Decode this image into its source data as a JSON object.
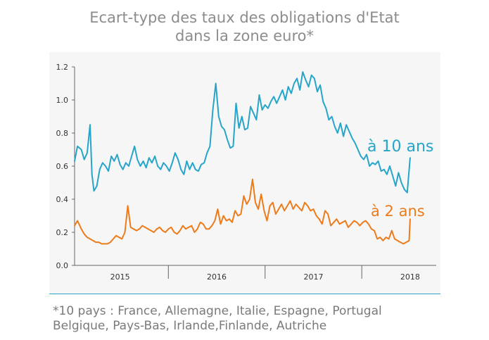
{
  "title": [
    "Ecart-type des taux des obligations d'Etat",
    "dans la zone euro*"
  ],
  "footnote": [
    "*10 pays : France, Allemagne, Italie, Espagne, Portugal",
    "Belgique, Pays-Bas, Irlande,Finlande, Autriche"
  ],
  "colors": {
    "title": "#8c8c8c",
    "axis": "#666666",
    "background_panel": "#f6f6f7",
    "ten_year": "#26a5c9",
    "two_year": "#ee7b1a",
    "footnote": "#7a7a7a"
  },
  "chart_data": {
    "type": "line",
    "title": "Ecart-type des taux des obligations d'Etat dans la zone euro*",
    "xlabel": "",
    "ylabel": "",
    "xlim": [
      2014.53,
      2018.27
    ],
    "ylim": [
      0,
      1.2
    ],
    "grid": false,
    "legend_placement": "inline-right",
    "x_ticks": [
      "2015",
      "2016",
      "2017",
      "2018"
    ],
    "x_tick_positions": [
      2015.0,
      2016.0,
      2017.0,
      2018.0
    ],
    "x_major_separators": [
      2015.5,
      2016.5,
      2017.5
    ],
    "y_ticks": [
      "0.0",
      "0.2",
      "0.4",
      "0.6",
      "0.8",
      "1.0",
      "1.2"
    ],
    "series": [
      {
        "name": "à 10 ans",
        "color": "#26a5c9",
        "x": [
          2014.53,
          2014.56,
          2014.6,
          2014.63,
          2014.66,
          2014.69,
          2014.71,
          2014.73,
          2014.76,
          2014.79,
          2014.82,
          2014.85,
          2014.88,
          2014.91,
          2014.94,
          2014.97,
          2015.0,
          2015.03,
          2015.06,
          2015.09,
          2015.12,
          2015.15,
          2015.18,
          2015.21,
          2015.24,
          2015.27,
          2015.3,
          2015.33,
          2015.36,
          2015.39,
          2015.42,
          2015.45,
          2015.48,
          2015.51,
          2015.54,
          2015.57,
          2015.6,
          2015.63,
          2015.66,
          2015.69,
          2015.72,
          2015.75,
          2015.78,
          2015.81,
          2015.84,
          2015.87,
          2015.9,
          2015.93,
          2015.96,
          2015.99,
          2016.02,
          2016.05,
          2016.08,
          2016.11,
          2016.14,
          2016.17,
          2016.2,
          2016.23,
          2016.26,
          2016.29,
          2016.32,
          2016.35,
          2016.38,
          2016.41,
          2016.44,
          2016.47,
          2016.5,
          2016.53,
          2016.56,
          2016.59,
          2016.62,
          2016.65,
          2016.68,
          2016.71,
          2016.74,
          2016.77,
          2016.8,
          2016.83,
          2016.86,
          2016.89,
          2016.92,
          2016.95,
          2016.98,
          2017.01,
          2017.04,
          2017.07,
          2017.1,
          2017.13,
          2017.16,
          2017.19,
          2017.22,
          2017.25,
          2017.28,
          2017.31,
          2017.34,
          2017.37,
          2017.4,
          2017.43,
          2017.46,
          2017.49,
          2017.52,
          2017.55,
          2017.58,
          2017.61,
          2017.64,
          2017.67,
          2017.7,
          2017.73,
          2017.76,
          2017.79,
          2017.82,
          2017.85,
          2017.88,
          2017.91,
          2017.94,
          2017.97,
          2018.0
        ],
        "values": [
          0.63,
          0.72,
          0.7,
          0.64,
          0.68,
          0.85,
          0.55,
          0.45,
          0.48,
          0.58,
          0.62,
          0.6,
          0.57,
          0.66,
          0.63,
          0.67,
          0.61,
          0.58,
          0.62,
          0.6,
          0.66,
          0.72,
          0.64,
          0.6,
          0.63,
          0.59,
          0.65,
          0.62,
          0.66,
          0.6,
          0.58,
          0.62,
          0.6,
          0.57,
          0.62,
          0.68,
          0.64,
          0.58,
          0.55,
          0.63,
          0.58,
          0.62,
          0.58,
          0.57,
          0.61,
          0.62,
          0.68,
          0.72,
          0.94,
          1.1,
          0.9,
          0.84,
          0.82,
          0.76,
          0.71,
          0.72,
          0.98,
          0.83,
          0.9,
          0.82,
          0.83,
          0.96,
          0.92,
          0.88,
          1.03,
          0.94,
          0.97,
          0.95,
          0.99,
          1.02,
          0.98,
          1.02,
          1.06,
          1.0,
          1.08,
          1.04,
          1.1,
          1.13,
          1.06,
          1.17,
          1.12,
          1.08,
          1.15,
          1.13,
          1.05,
          1.09,
          0.99,
          0.95,
          0.88,
          0.9,
          0.84,
          0.8,
          0.86,
          0.78,
          0.85,
          0.81,
          0.77,
          0.74,
          0.7,
          0.66,
          0.64,
          0.67,
          0.6,
          0.62,
          0.61,
          0.63,
          0.57,
          0.58,
          0.55,
          0.6,
          0.54,
          0.48,
          0.56,
          0.5,
          0.46,
          0.44,
          0.65
        ]
      },
      {
        "name": "à 2 ans",
        "color": "#ee7b1a",
        "x": [
          2014.53,
          2014.56,
          2014.6,
          2014.63,
          2014.66,
          2014.69,
          2014.72,
          2014.75,
          2014.78,
          2014.81,
          2014.84,
          2014.87,
          2014.9,
          2014.93,
          2014.96,
          2014.99,
          2015.02,
          2015.05,
          2015.08,
          2015.11,
          2015.14,
          2015.17,
          2015.2,
          2015.23,
          2015.26,
          2015.29,
          2015.32,
          2015.35,
          2015.38,
          2015.41,
          2015.44,
          2015.47,
          2015.5,
          2015.53,
          2015.56,
          2015.59,
          2015.62,
          2015.65,
          2015.68,
          2015.71,
          2015.74,
          2015.77,
          2015.8,
          2015.83,
          2015.86,
          2015.89,
          2015.92,
          2015.95,
          2015.98,
          2016.01,
          2016.04,
          2016.07,
          2016.1,
          2016.13,
          2016.16,
          2016.19,
          2016.22,
          2016.25,
          2016.28,
          2016.31,
          2016.34,
          2016.37,
          2016.4,
          2016.43,
          2016.46,
          2016.49,
          2016.52,
          2016.55,
          2016.58,
          2016.61,
          2016.64,
          2016.67,
          2016.7,
          2016.73,
          2016.76,
          2016.79,
          2016.82,
          2016.85,
          2016.88,
          2016.91,
          2016.94,
          2016.97,
          2017.0,
          2017.03,
          2017.06,
          2017.09,
          2017.12,
          2017.15,
          2017.18,
          2017.21,
          2017.24,
          2017.27,
          2017.3,
          2017.33,
          2017.36,
          2017.39,
          2017.42,
          2017.45,
          2017.48,
          2017.51,
          2017.54,
          2017.57,
          2017.6,
          2017.63,
          2017.66,
          2017.69,
          2017.72,
          2017.75,
          2017.78,
          2017.81,
          2017.84,
          2017.87,
          2017.9,
          2017.93,
          2017.96,
          2017.99,
          2018.0
        ],
        "values": [
          0.24,
          0.27,
          0.22,
          0.19,
          0.17,
          0.16,
          0.15,
          0.14,
          0.14,
          0.13,
          0.13,
          0.13,
          0.14,
          0.16,
          0.18,
          0.17,
          0.16,
          0.2,
          0.36,
          0.23,
          0.22,
          0.21,
          0.22,
          0.24,
          0.23,
          0.22,
          0.21,
          0.2,
          0.22,
          0.23,
          0.21,
          0.2,
          0.22,
          0.23,
          0.2,
          0.19,
          0.21,
          0.24,
          0.22,
          0.23,
          0.24,
          0.2,
          0.22,
          0.26,
          0.25,
          0.22,
          0.22,
          0.24,
          0.27,
          0.34,
          0.25,
          0.3,
          0.27,
          0.28,
          0.26,
          0.33,
          0.3,
          0.31,
          0.42,
          0.37,
          0.4,
          0.52,
          0.38,
          0.34,
          0.43,
          0.33,
          0.27,
          0.36,
          0.38,
          0.31,
          0.34,
          0.37,
          0.33,
          0.36,
          0.39,
          0.34,
          0.37,
          0.35,
          0.33,
          0.38,
          0.36,
          0.33,
          0.34,
          0.3,
          0.28,
          0.25,
          0.33,
          0.31,
          0.24,
          0.26,
          0.28,
          0.25,
          0.26,
          0.27,
          0.23,
          0.25,
          0.27,
          0.26,
          0.24,
          0.26,
          0.27,
          0.25,
          0.22,
          0.21,
          0.16,
          0.17,
          0.15,
          0.17,
          0.16,
          0.21,
          0.16,
          0.15,
          0.14,
          0.13,
          0.14,
          0.15,
          0.28
        ]
      }
    ]
  }
}
